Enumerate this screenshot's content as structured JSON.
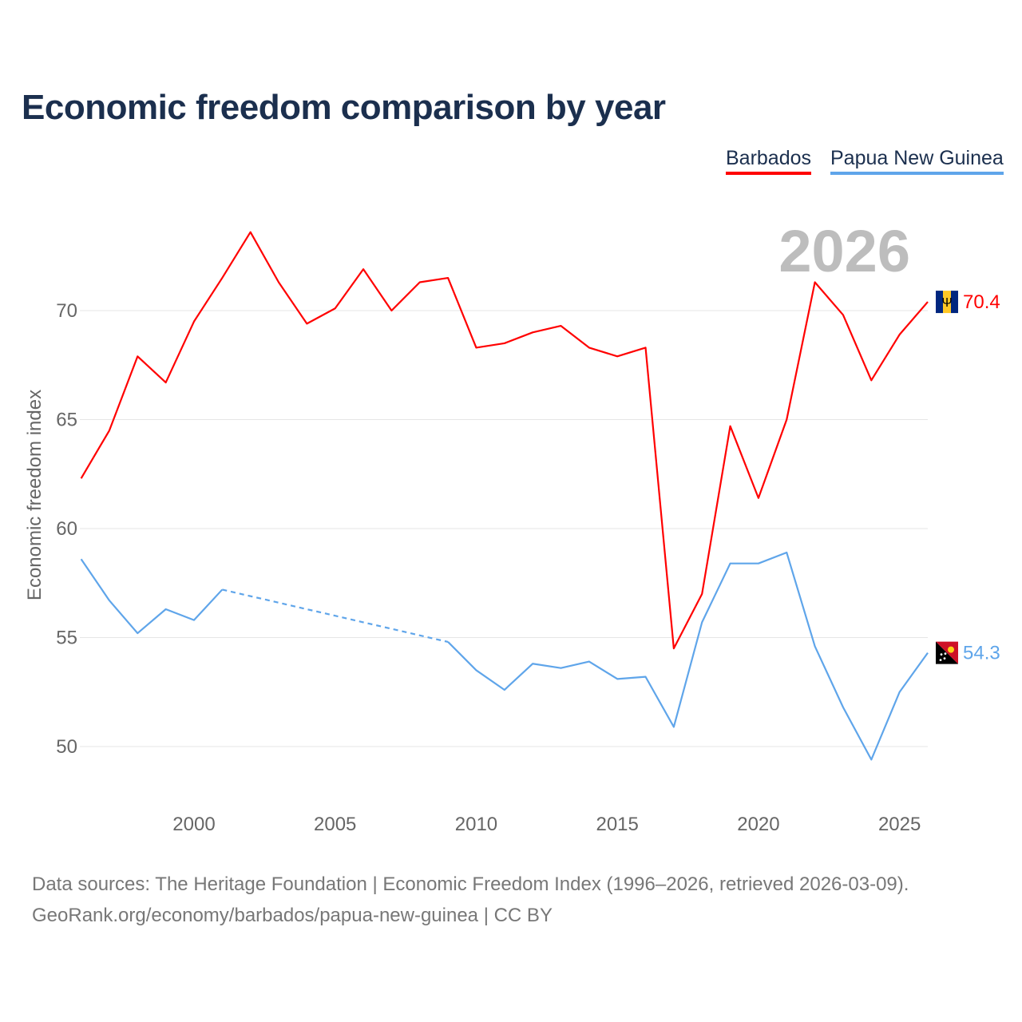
{
  "chart_data": {
    "type": "line",
    "title": "Economic freedom comparison by year",
    "ylabel": "Economic freedom index",
    "xlabel": "",
    "year_label": "2026",
    "ylim": [
      47,
      75
    ],
    "xlim": [
      1996,
      2026
    ],
    "yticks": [
      50,
      55,
      60,
      65,
      70
    ],
    "xticks": [
      2000,
      2005,
      2010,
      2015,
      2020,
      2025
    ],
    "grid": true,
    "legend_position": "top-right",
    "x": [
      1996,
      1997,
      1998,
      1999,
      2000,
      2001,
      2002,
      2003,
      2004,
      2005,
      2006,
      2007,
      2008,
      2009,
      2010,
      2011,
      2012,
      2013,
      2014,
      2015,
      2016,
      2017,
      2018,
      2019,
      2020,
      2021,
      2022,
      2023,
      2024,
      2025,
      2026
    ],
    "series": [
      {
        "name": "Barbados",
        "color": "#ff0000",
        "end_label": "70.4",
        "flag": "barbados-flag",
        "values": [
          62.3,
          64.5,
          67.9,
          66.7,
          69.5,
          71.5,
          73.6,
          71.3,
          69.4,
          70.1,
          71.9,
          70.0,
          71.3,
          71.5,
          68.3,
          68.5,
          69.0,
          69.3,
          68.3,
          67.9,
          68.3,
          54.5,
          57.0,
          64.7,
          61.4,
          65.0,
          71.3,
          69.8,
          66.8,
          68.9,
          70.4
        ]
      },
      {
        "name": "Papua New Guinea",
        "color": "#5fa5ea",
        "end_label": "54.3",
        "flag": "papua-new-guinea-flag",
        "values": [
          58.6,
          56.7,
          55.2,
          56.3,
          55.8,
          57.2,
          null,
          null,
          null,
          null,
          null,
          null,
          null,
          54.8,
          53.5,
          52.6,
          53.8,
          53.6,
          53.9,
          53.1,
          53.2,
          50.9,
          55.7,
          58.4,
          58.4,
          58.9,
          54.6,
          51.8,
          49.4,
          52.5,
          54.3
        ]
      }
    ]
  },
  "footer": {
    "line1": "Data sources: The Heritage Foundation | Economic Freedom Index (1996–2026, retrieved 2026-03-09).",
    "line2": "GeoRank.org/economy/barbados/papua-new-guinea | CC BY"
  }
}
